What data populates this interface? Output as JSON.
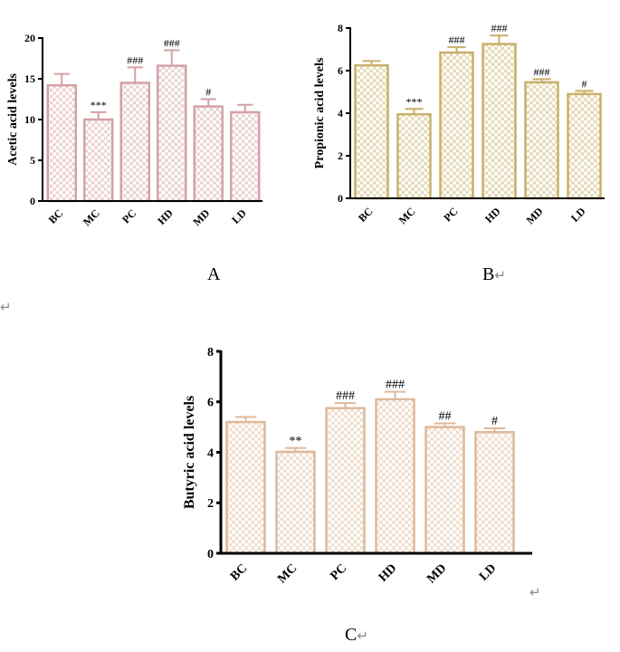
{
  "captions": {
    "a": "A",
    "b": "B",
    "c": "C"
  },
  "return_mark": "↵",
  "colors": {
    "panel_a": "#d4a2a6",
    "panel_b": "#c8b068",
    "panel_c": "#deb99a",
    "axis": "#000000"
  },
  "chart_data": [
    {
      "type": "bar",
      "panel": "A",
      "ylabel": "Acetic acid levels",
      "categories": [
        "BC",
        "MC",
        "PC",
        "HD",
        "MD",
        "LD"
      ],
      "values": [
        14.2,
        10.0,
        14.5,
        16.6,
        11.6,
        10.9
      ],
      "errors": [
        1.4,
        0.9,
        1.9,
        1.9,
        0.9,
        0.9
      ],
      "annotations": [
        "",
        "***",
        "###",
        "###",
        "#",
        ""
      ],
      "ylim": [
        0,
        20
      ],
      "yticks": [
        0,
        5,
        10,
        15,
        20
      ]
    },
    {
      "type": "bar",
      "panel": "B",
      "ylabel": "Propionic acid levels",
      "categories": [
        "BC",
        "MC",
        "PC",
        "HD",
        "MD",
        "LD"
      ],
      "values": [
        6.25,
        3.95,
        6.85,
        7.25,
        5.45,
        4.9
      ],
      "errors": [
        0.2,
        0.25,
        0.25,
        0.4,
        0.15,
        0.15
      ],
      "annotations": [
        "",
        "***",
        "###",
        "###",
        "###",
        "#"
      ],
      "ylim": [
        0,
        8
      ],
      "yticks": [
        0,
        2,
        4,
        6,
        8
      ]
    },
    {
      "type": "bar",
      "panel": "C",
      "ylabel": "Butyric acid levels",
      "categories": [
        "BC",
        "MC",
        "PC",
        "HD",
        "MD",
        "LD"
      ],
      "values": [
        5.2,
        4.02,
        5.75,
        6.1,
        5.0,
        4.8
      ],
      "errors": [
        0.2,
        0.15,
        0.2,
        0.3,
        0.15,
        0.15
      ],
      "annotations": [
        "",
        "**",
        "###",
        "###",
        "##",
        "#"
      ],
      "ylim": [
        0,
        8
      ],
      "yticks": [
        0,
        2,
        4,
        6,
        8
      ]
    }
  ]
}
